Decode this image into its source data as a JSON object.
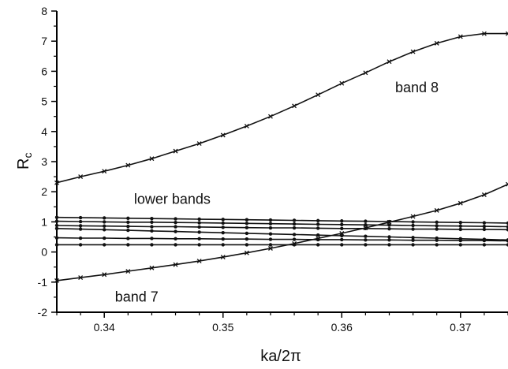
{
  "chart_data": {
    "type": "line",
    "title": "",
    "xlabel": "ka/2π",
    "ylabel_main": "R",
    "ylabel_sub": "c",
    "xlim": [
      0.336,
      0.374
    ],
    "ylim": [
      -2,
      8
    ],
    "x_ticks": [
      0.34,
      0.35,
      0.36,
      0.37
    ],
    "x_tick_labels": [
      "0.34",
      "0.35",
      "0.36",
      "0.37"
    ],
    "y_ticks": [
      -2,
      -1,
      0,
      1,
      2,
      3,
      4,
      5,
      6,
      7,
      8
    ],
    "y_tick_labels": [
      "-2",
      "-1",
      "0",
      "1",
      "2",
      "3",
      "4",
      "5",
      "6",
      "7",
      "8"
    ],
    "grid": false,
    "annotations": [
      {
        "text": "band 8",
        "x": 0.3645,
        "y": 5.3
      },
      {
        "text": "lower bands",
        "x": 0.3425,
        "y": 1.6
      },
      {
        "text": "band 7",
        "x": 0.3409,
        "y": -1.65
      }
    ],
    "series": [
      {
        "marker": "cross",
        "x": [
          0.336,
          0.338,
          0.34,
          0.342,
          0.344,
          0.346,
          0.348,
          0.35,
          0.352,
          0.354,
          0.356,
          0.358,
          0.36,
          0.362,
          0.364,
          0.366,
          0.368,
          0.37,
          0.372,
          0.374
        ],
        "y": [
          2.3,
          2.5,
          2.68,
          2.88,
          3.1,
          3.35,
          3.6,
          3.88,
          4.18,
          4.5,
          4.85,
          5.22,
          5.6,
          5.95,
          6.32,
          6.65,
          6.93,
          7.15,
          7.25,
          7.25
        ]
      },
      {
        "marker": "cross",
        "x": [
          0.336,
          0.338,
          0.34,
          0.342,
          0.344,
          0.346,
          0.348,
          0.35,
          0.352,
          0.354,
          0.356,
          0.358,
          0.36,
          0.362,
          0.364,
          0.366,
          0.368,
          0.37,
          0.372,
          0.374
        ],
        "y": [
          -0.95,
          -0.85,
          -0.75,
          -0.64,
          -0.53,
          -0.42,
          -0.3,
          -0.17,
          -0.03,
          0.12,
          0.28,
          0.45,
          0.62,
          0.8,
          0.99,
          1.18,
          1.38,
          1.62,
          1.9,
          2.25
        ]
      },
      {
        "marker": "dot",
        "x": [
          0.336,
          0.338,
          0.34,
          0.342,
          0.344,
          0.346,
          0.348,
          0.35,
          0.352,
          0.354,
          0.356,
          0.358,
          0.36,
          0.362,
          0.364,
          0.366,
          0.368,
          0.37,
          0.372,
          0.374
        ],
        "y": [
          1.15,
          1.14,
          1.13,
          1.12,
          1.11,
          1.1,
          1.09,
          1.08,
          1.07,
          1.06,
          1.05,
          1.04,
          1.03,
          1.02,
          1.01,
          1.0,
          0.99,
          0.98,
          0.97,
          0.96
        ]
      },
      {
        "marker": "dot",
        "x": [
          0.336,
          0.338,
          0.34,
          0.342,
          0.344,
          0.346,
          0.348,
          0.35,
          0.352,
          0.354,
          0.356,
          0.358,
          0.36,
          0.362,
          0.364,
          0.366,
          0.368,
          0.37,
          0.372,
          0.374
        ],
        "y": [
          1.02,
          1.01,
          1.0,
          0.99,
          0.99,
          0.98,
          0.97,
          0.96,
          0.95,
          0.94,
          0.93,
          0.92,
          0.91,
          0.9,
          0.89,
          0.88,
          0.87,
          0.86,
          0.85,
          0.84
        ]
      },
      {
        "marker": "dot",
        "x": [
          0.336,
          0.338,
          0.34,
          0.342,
          0.344,
          0.346,
          0.348,
          0.35,
          0.352,
          0.354,
          0.356,
          0.358,
          0.36,
          0.362,
          0.364,
          0.366,
          0.368,
          0.37,
          0.372,
          0.374
        ],
        "y": [
          0.88,
          0.87,
          0.86,
          0.85,
          0.84,
          0.84,
          0.83,
          0.82,
          0.81,
          0.8,
          0.8,
          0.79,
          0.78,
          0.78,
          0.77,
          0.76,
          0.76,
          0.75,
          0.75,
          0.74
        ]
      },
      {
        "marker": "dot",
        "x": [
          0.336,
          0.338,
          0.34,
          0.342,
          0.344,
          0.346,
          0.348,
          0.35,
          0.352,
          0.354,
          0.356,
          0.358,
          0.36,
          0.362,
          0.364,
          0.366,
          0.368,
          0.37,
          0.372,
          0.374
        ],
        "y": [
          0.78,
          0.76,
          0.74,
          0.72,
          0.7,
          0.68,
          0.66,
          0.64,
          0.62,
          0.6,
          0.58,
          0.56,
          0.54,
          0.52,
          0.5,
          0.48,
          0.46,
          0.44,
          0.42,
          0.4
        ]
      },
      {
        "marker": "dot",
        "x": [
          0.336,
          0.338,
          0.34,
          0.342,
          0.344,
          0.346,
          0.348,
          0.35,
          0.352,
          0.354,
          0.356,
          0.358,
          0.36,
          0.362,
          0.364,
          0.366,
          0.368,
          0.37,
          0.372,
          0.374
        ],
        "y": [
          0.47,
          0.46,
          0.46,
          0.45,
          0.45,
          0.44,
          0.44,
          0.43,
          0.43,
          0.42,
          0.42,
          0.41,
          0.41,
          0.4,
          0.4,
          0.39,
          0.39,
          0.38,
          0.38,
          0.37
        ]
      },
      {
        "marker": "dot",
        "x": [
          0.336,
          0.338,
          0.34,
          0.342,
          0.344,
          0.346,
          0.348,
          0.35,
          0.352,
          0.354,
          0.356,
          0.358,
          0.36,
          0.362,
          0.364,
          0.366,
          0.368,
          0.37,
          0.372,
          0.374
        ],
        "y": [
          0.24,
          0.24,
          0.24,
          0.24,
          0.24,
          0.24,
          0.24,
          0.24,
          0.24,
          0.24,
          0.24,
          0.24,
          0.24,
          0.24,
          0.24,
          0.24,
          0.24,
          0.24,
          0.24,
          0.24
        ]
      }
    ]
  }
}
